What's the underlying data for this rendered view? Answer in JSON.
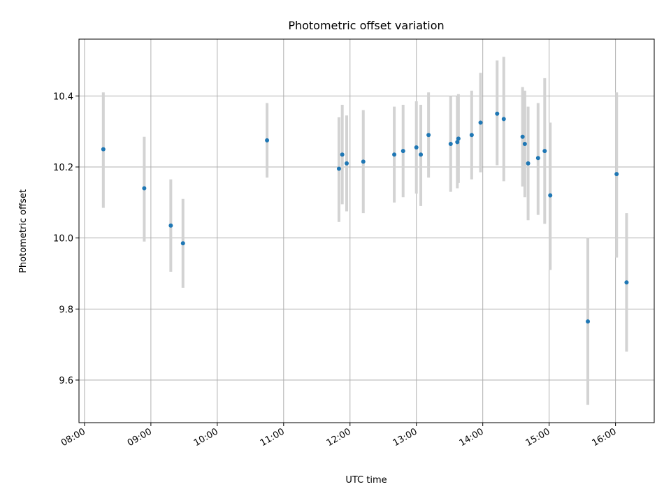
{
  "chart_data": {
    "type": "scatter",
    "title": "Photometric offset variation",
    "xlabel": "UTC time",
    "ylabel": "Photometric offset",
    "x_tick_labels": [
      "08:00",
      "09:00",
      "10:00",
      "11:00",
      "12:00",
      "13:00",
      "14:00",
      "15:00",
      "16:00"
    ],
    "y_ticks": [
      9.6,
      9.8,
      10.0,
      10.2,
      10.4
    ],
    "y_tick_labels": [
      "9.6",
      "9.8",
      "10.0",
      "10.2",
      "10.4"
    ],
    "xlim": [
      "07:55",
      "16:35"
    ],
    "ylim": [
      9.48,
      10.56
    ],
    "grid": true,
    "marker_color": "#1f77b4",
    "errorbar_color": "#d3d3d3",
    "series": [
      {
        "points": [
          {
            "x": "08:17",
            "y": 10.25,
            "err_low": 10.085,
            "err_high": 10.41
          },
          {
            "x": "08:54",
            "y": 10.14,
            "err_low": 9.99,
            "err_high": 10.285
          },
          {
            "x": "09:18",
            "y": 10.035,
            "err_low": 9.905,
            "err_high": 10.165
          },
          {
            "x": "09:29",
            "y": 9.985,
            "err_low": 9.86,
            "err_high": 10.11
          },
          {
            "x": "10:45",
            "y": 10.275,
            "err_low": 10.17,
            "err_high": 10.38
          },
          {
            "x": "11:50",
            "y": 10.195,
            "err_low": 10.045,
            "err_high": 10.34
          },
          {
            "x": "11:53",
            "y": 10.235,
            "err_low": 10.095,
            "err_high": 10.375
          },
          {
            "x": "11:57",
            "y": 10.21,
            "err_low": 10.075,
            "err_high": 10.345
          },
          {
            "x": "12:12",
            "y": 10.215,
            "err_low": 10.07,
            "err_high": 10.36
          },
          {
            "x": "12:40",
            "y": 10.235,
            "err_low": 10.1,
            "err_high": 10.37
          },
          {
            "x": "12:48",
            "y": 10.245,
            "err_low": 10.115,
            "err_high": 10.375
          },
          {
            "x": "13:00",
            "y": 10.255,
            "err_low": 10.125,
            "err_high": 10.385
          },
          {
            "x": "13:04",
            "y": 10.235,
            "err_low": 10.09,
            "err_high": 10.375
          },
          {
            "x": "13:11",
            "y": 10.29,
            "err_low": 10.17,
            "err_high": 10.41
          },
          {
            "x": "13:31",
            "y": 10.265,
            "err_low": 10.13,
            "err_high": 10.4
          },
          {
            "x": "13:37",
            "y": 10.27,
            "err_low": 10.14,
            "err_high": 10.4
          },
          {
            "x": "13:38",
            "y": 10.28,
            "err_low": 10.155,
            "err_high": 10.405
          },
          {
            "x": "13:50",
            "y": 10.29,
            "err_low": 10.165,
            "err_high": 10.415
          },
          {
            "x": "13:58",
            "y": 10.325,
            "err_low": 10.185,
            "err_high": 10.465
          },
          {
            "x": "14:13",
            "y": 10.35,
            "err_low": 10.205,
            "err_high": 10.5
          },
          {
            "x": "14:19",
            "y": 10.335,
            "err_low": 10.16,
            "err_high": 10.51
          },
          {
            "x": "14:36",
            "y": 10.285,
            "err_low": 10.145,
            "err_high": 10.425
          },
          {
            "x": "14:38",
            "y": 10.265,
            "err_low": 10.115,
            "err_high": 10.415
          },
          {
            "x": "14:41",
            "y": 10.21,
            "err_low": 10.05,
            "err_high": 10.37
          },
          {
            "x": "14:50",
            "y": 10.225,
            "err_low": 10.065,
            "err_high": 10.38
          },
          {
            "x": "14:56",
            "y": 10.245,
            "err_low": 10.04,
            "err_high": 10.45
          },
          {
            "x": "15:01",
            "y": 10.12,
            "err_low": 9.91,
            "err_high": 10.325
          },
          {
            "x": "15:35",
            "y": 9.765,
            "err_low": 9.53,
            "err_high": 10.0
          },
          {
            "x": "16:01",
            "y": 10.18,
            "err_low": 9.945,
            "err_high": 10.41
          },
          {
            "x": "16:10",
            "y": 9.875,
            "err_low": 9.68,
            "err_high": 10.07
          }
        ]
      }
    ]
  }
}
